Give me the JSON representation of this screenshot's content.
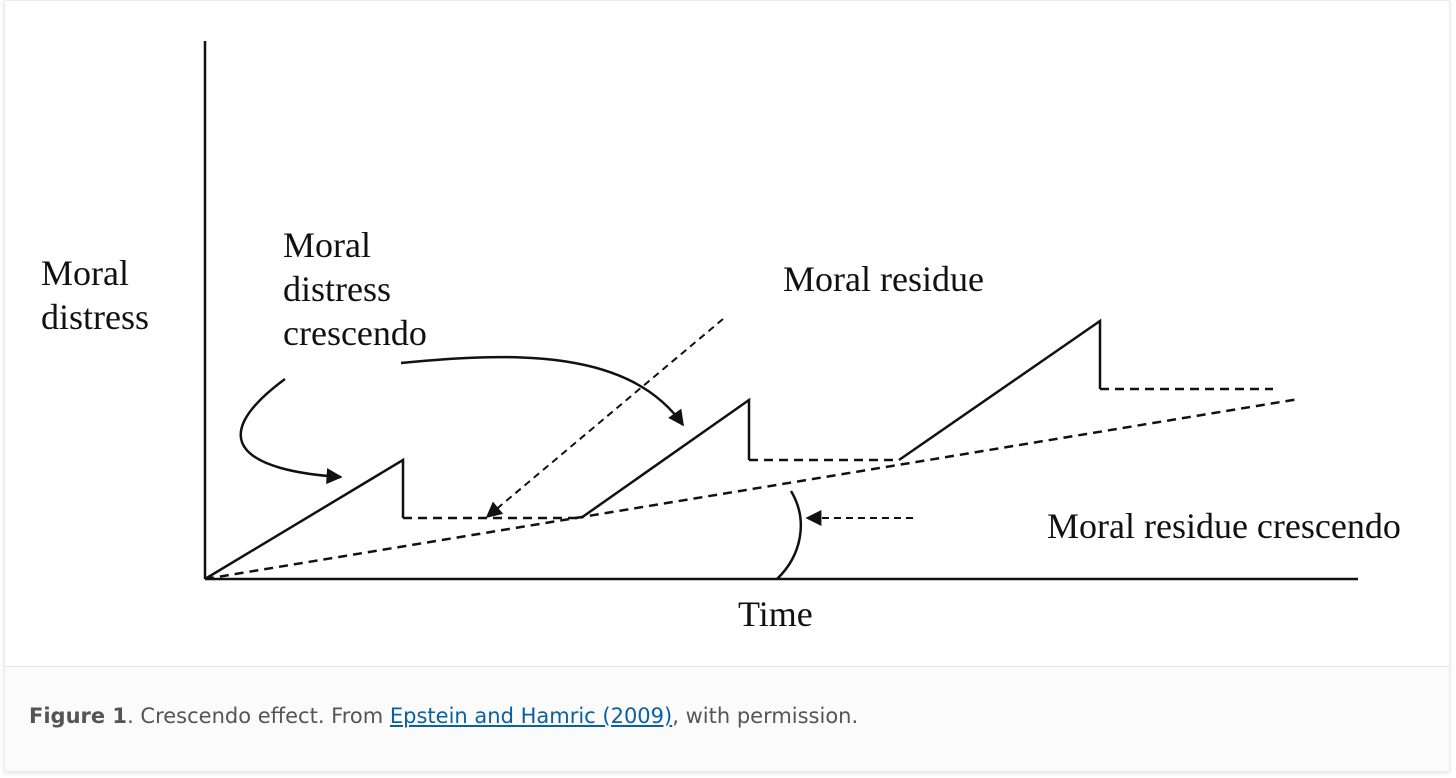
{
  "diagram": {
    "y_axis_label": [
      "Moral",
      "distress"
    ],
    "x_axis_label": "Time",
    "label_crescendo": [
      "Moral",
      "distress",
      "crescendo"
    ],
    "label_residue": "Moral residue",
    "label_residue_crescendo": "Moral residue crescendo"
  },
  "caption": {
    "figure_label": "Figure 1",
    "text_before_link": ". Crescendo effect. From ",
    "link_text": "Epstein and Hamric (2009)",
    "text_after_link": ", with permission."
  }
}
